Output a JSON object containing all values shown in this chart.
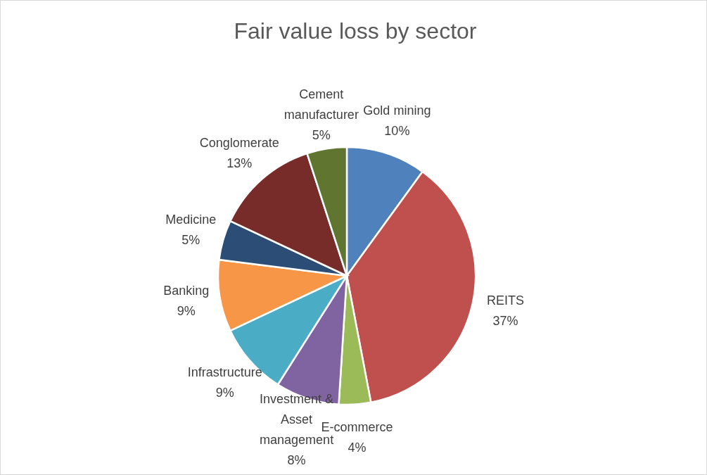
{
  "chart_data": {
    "type": "pie",
    "title": "Fair value loss by sector",
    "categories": [
      "Gold mining",
      "REITS",
      "E-commerce",
      "Investment & Asset management",
      "Infrastructure",
      "Banking",
      "Medicine",
      "Conglomerate",
      "Cement manufacturer"
    ],
    "values": [
      10,
      37,
      4,
      8,
      9,
      9,
      5,
      13,
      5
    ],
    "colors": [
      "#4f81bd",
      "#c0504d",
      "#9bbb59",
      "#8064a2",
      "#4bacc6",
      "#f79646",
      "#2c4d75",
      "#772c2a",
      "#5f7530"
    ],
    "value_labels": [
      "10%",
      "37%",
      "4%",
      "8%",
      "9%",
      "9%",
      "5%",
      "13%",
      "5%"
    ]
  }
}
